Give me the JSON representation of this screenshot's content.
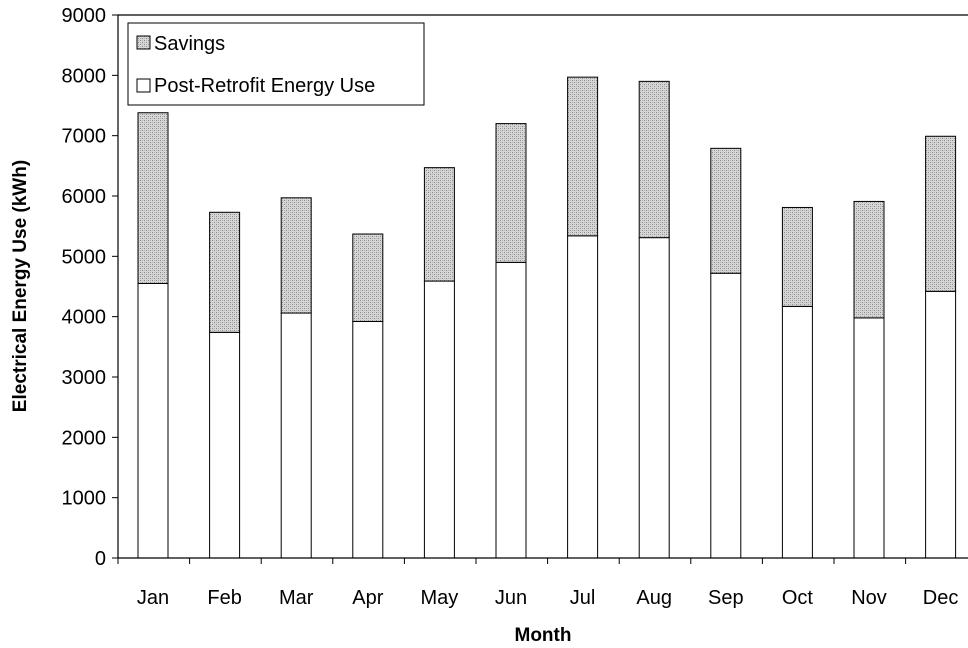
{
  "chart_data": {
    "type": "bar",
    "stacked": true,
    "categories": [
      "Jan",
      "Feb",
      "Mar",
      "Apr",
      "May",
      "Jun",
      "Jul",
      "Aug",
      "Sep",
      "Oct",
      "Nov",
      "Dec"
    ],
    "series": [
      {
        "name": "Post-Retrofit Energy Use",
        "values": [
          4550,
          3740,
          4060,
          3920,
          4590,
          4900,
          5340,
          5310,
          4720,
          4170,
          3980,
          4420
        ],
        "fill": "#ffffff"
      },
      {
        "name": "Savings",
        "values": [
          2830,
          1990,
          1910,
          1450,
          1880,
          2300,
          2630,
          2590,
          2070,
          1640,
          1930,
          2570
        ],
        "fill": "#d0d0d0"
      }
    ],
    "legend_order": [
      "Savings",
      "Post-Retrofit Energy Use"
    ],
    "xlabel": "Month",
    "ylabel": "Electrical Energy Use (kWh)",
    "ylim": [
      0,
      9000
    ],
    "yticks": [
      0,
      1000,
      2000,
      3000,
      4000,
      5000,
      6000,
      7000,
      8000,
      9000
    ],
    "grid": false,
    "legend_position": "top-left"
  }
}
